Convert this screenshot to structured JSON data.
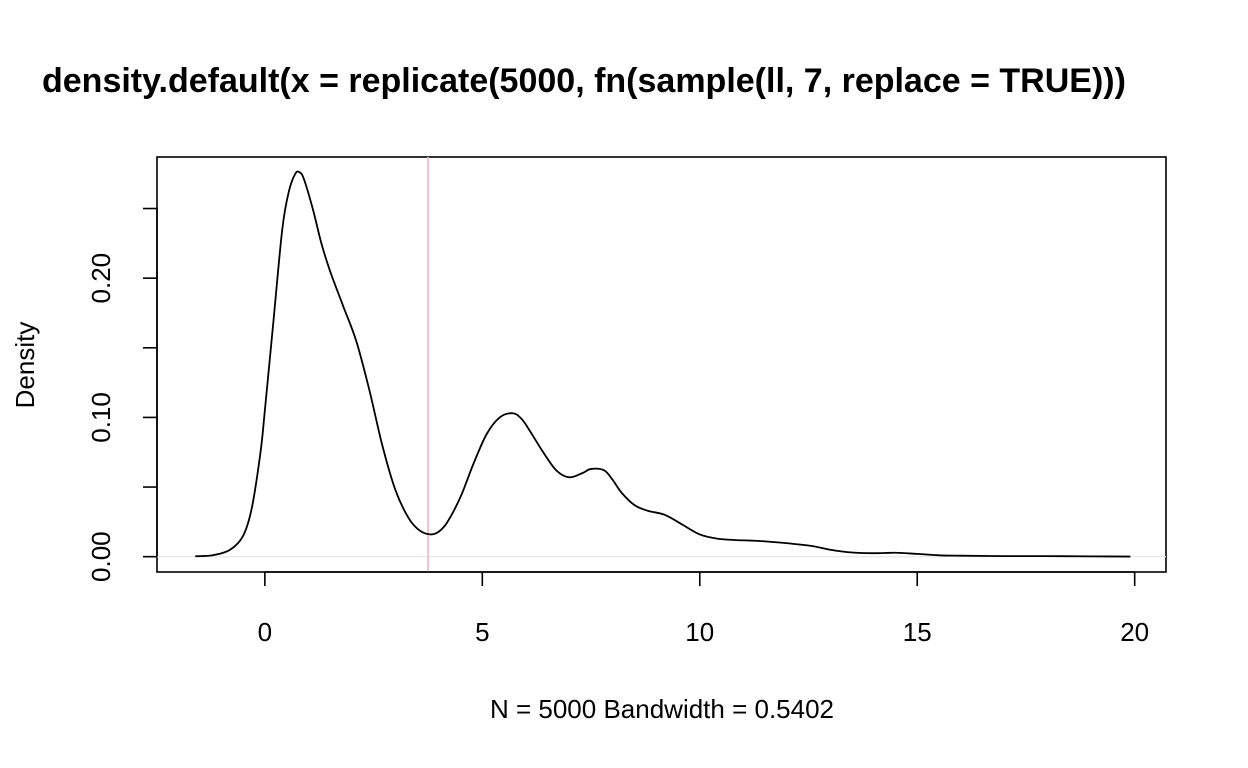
{
  "chart_data": {
    "type": "line",
    "title": "density.default(x = replicate(5000, fn(sample(ll, 7, replace = TRUE)))",
    "xlabel": "N = 5000   Bandwidth = 0.5402",
    "ylabel": "Density",
    "xlim": [
      -2.48,
      20.72
    ],
    "ylim": [
      -0.011,
      0.287
    ],
    "x_ticks": [
      0,
      5,
      10,
      15,
      20
    ],
    "x_tick_labels": [
      "0",
      "5",
      "10",
      "15",
      "20"
    ],
    "y_ticks": [
      0.0,
      0.05,
      0.1,
      0.15,
      0.2,
      0.25
    ],
    "y_tick_labels": [
      "0.00",
      "",
      "0.10",
      "",
      "0.20",
      ""
    ],
    "grid": false,
    "series": [
      {
        "color": "#000000",
        "x": [
          -1.6,
          -1.2,
          -0.8,
          -0.5,
          -0.3,
          -0.1,
          0.0,
          0.2,
          0.4,
          0.55,
          0.7,
          0.8,
          0.9,
          1.1,
          1.3,
          1.5,
          1.8,
          2.1,
          2.4,
          2.7,
          3.0,
          3.3,
          3.55,
          3.8,
          4.0,
          4.2,
          4.5,
          4.8,
          5.1,
          5.4,
          5.7,
          5.9,
          6.1,
          6.4,
          6.7,
          7.0,
          7.3,
          7.5,
          7.8,
          8.0,
          8.2,
          8.5,
          8.8,
          9.2,
          9.6,
          10.0,
          10.4,
          10.8,
          11.5,
          12.5,
          13.0,
          13.5,
          14.0,
          14.5,
          15.0,
          15.5,
          16.0,
          17.0,
          18.0,
          19.0,
          19.9
        ],
        "y": [
          0.0003,
          0.001,
          0.005,
          0.015,
          0.035,
          0.075,
          0.105,
          0.17,
          0.235,
          0.262,
          0.275,
          0.276,
          0.271,
          0.25,
          0.225,
          0.205,
          0.18,
          0.155,
          0.12,
          0.08,
          0.048,
          0.028,
          0.019,
          0.016,
          0.018,
          0.025,
          0.043,
          0.067,
          0.088,
          0.1,
          0.103,
          0.099,
          0.09,
          0.075,
          0.062,
          0.057,
          0.06,
          0.063,
          0.062,
          0.055,
          0.046,
          0.037,
          0.033,
          0.03,
          0.023,
          0.016,
          0.013,
          0.012,
          0.011,
          0.008,
          0.005,
          0.003,
          0.0025,
          0.0028,
          0.002,
          0.001,
          0.0007,
          0.0004,
          0.0004,
          0.0002,
          0.0001
        ]
      }
    ],
    "reference_lines": [
      {
        "orientation": "vertical",
        "x": 3.75,
        "color": "#ffb6c1"
      },
      {
        "orientation": "horizontal",
        "y": 0,
        "color": "#e6e6e6"
      }
    ]
  }
}
